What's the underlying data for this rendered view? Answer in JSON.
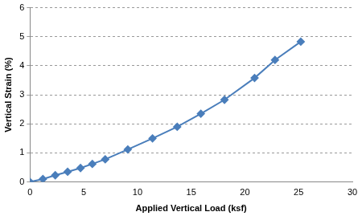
{
  "chart_data": {
    "type": "line",
    "x_label": "Applied Vertical Load (ksf)",
    "y_label": "Vertical Strain (%)",
    "x": [
      0,
      1.2,
      2.35,
      3.5,
      4.7,
      5.8,
      7.0,
      9.1,
      11.4,
      13.7,
      15.9,
      18.1,
      20.9,
      22.8,
      25.2
    ],
    "series": [
      {
        "name": "Vertical Strain",
        "color": "#4a7ebb",
        "marker": "diamond",
        "line_style": "solid",
        "values": [
          0,
          0.1,
          0.23,
          0.35,
          0.48,
          0.62,
          0.78,
          1.12,
          1.5,
          1.9,
          2.35,
          2.83,
          3.58,
          4.2,
          4.83
        ]
      }
    ],
    "xlim": [
      0,
      30
    ],
    "xticks": [
      0,
      5,
      10,
      15,
      20,
      25,
      30
    ],
    "ylim": [
      0,
      6
    ],
    "yticks": [
      0,
      1,
      2,
      3,
      4,
      5,
      6
    ],
    "grid": "y"
  }
}
